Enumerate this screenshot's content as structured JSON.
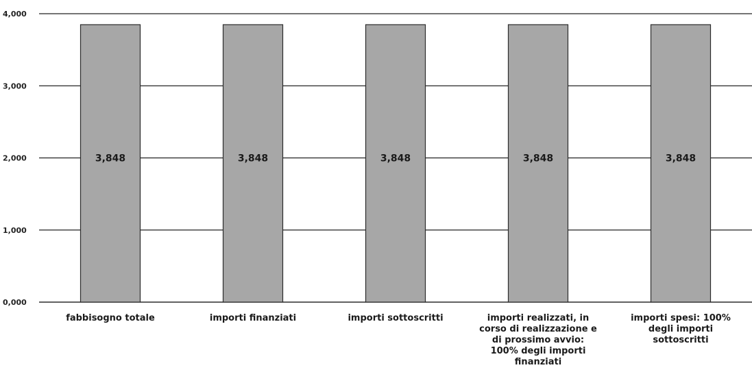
{
  "chart_data": {
    "type": "bar",
    "categories": [
      "fabbisogno totale",
      "importi finanziati",
      "importi sottoscritti",
      "importi realizzati, in corso di realizzazione e di prossimo avvio: 100% degli importi finanziati",
      "importi spesi: 100% degli importi sottoscritti"
    ],
    "category_lines": [
      [
        "fabbisogno totale"
      ],
      [
        "importi finanziati"
      ],
      [
        "importi sottoscritti"
      ],
      [
        "importi realizzati, in",
        "corso di realizzazione e",
        "di prossimo avvio:",
        "100% degli importi",
        "finanziati"
      ],
      [
        "importi spesi: 100%",
        "degli importi",
        "sottoscritti"
      ]
    ],
    "values": [
      3848,
      3848,
      3848,
      3848,
      3848
    ],
    "data_labels": [
      "3,848",
      "3,848",
      "3,848",
      "3,848",
      "3,848"
    ],
    "yticks": [
      0,
      1000,
      2000,
      3000,
      4000
    ],
    "ytick_labels": [
      "0,000",
      "1,000",
      "2,000",
      "3,000",
      "4,000"
    ],
    "ylim": [
      0,
      4000
    ],
    "title": "",
    "xlabel": "",
    "ylabel": "",
    "grid": true,
    "legend": "none",
    "colors": {
      "bar": "#a7a7a7",
      "bar_edge": "#2b2b2b",
      "grid": "#222222"
    }
  }
}
